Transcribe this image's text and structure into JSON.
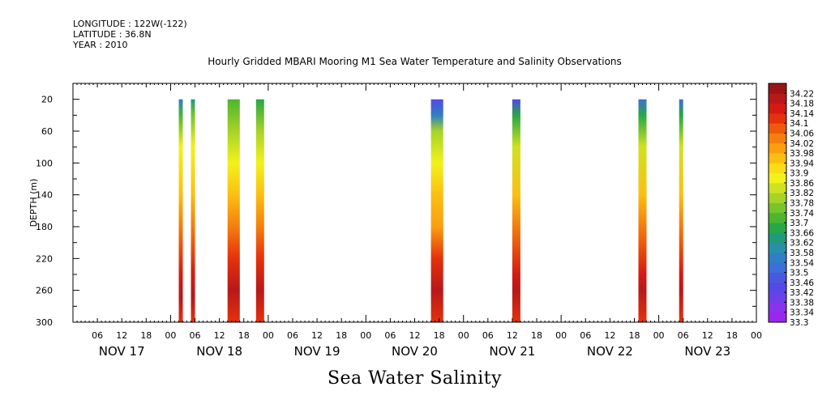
{
  "header": {
    "longitude": "LONGITUDE : 122W(-122)",
    "latitude": "LATITUDE : 36.8N",
    "year": "YEAR : 2010"
  },
  "chart_data": {
    "type": "heatmap",
    "title": "Hourly Gridded MBARI Mooring M1 Sea Water Temperature and Salinity Observations",
    "variable": "Sea Water Salinity",
    "ylabel": "DEPTH (m)",
    "y_reversed": true,
    "ylim": [
      0,
      300
    ],
    "yticks": [
      20,
      60,
      100,
      140,
      180,
      220,
      260,
      300
    ],
    "xlim_hours": [
      0,
      168
    ],
    "x_hour_ticks": [
      "06",
      "12",
      "18",
      "00",
      "06",
      "12",
      "18",
      "00",
      "06",
      "12",
      "18",
      "00",
      "06",
      "12",
      "18",
      "00",
      "06",
      "12",
      "18",
      "00",
      "06",
      "12",
      "18",
      "00",
      "06",
      "12",
      "18",
      "00"
    ],
    "x_day_labels": [
      "NOV 17",
      "NOV 18",
      "NOV 19",
      "NOV 20",
      "NOV 21",
      "NOV 22",
      "NOV 23"
    ],
    "colorbar_levels": [
      33.3,
      33.34,
      33.38,
      33.42,
      33.46,
      33.5,
      33.54,
      33.58,
      33.62,
      33.66,
      33.7,
      33.74,
      33.78,
      33.82,
      33.86,
      33.9,
      33.94,
      33.98,
      34.02,
      34.06,
      34.1,
      34.14,
      34.18,
      34.22
    ],
    "colorbar_colors": [
      "#9b27ee",
      "#8a33ec",
      "#6c3fea",
      "#5548e6",
      "#4a58e0",
      "#3d6fd8",
      "#2f7fc4",
      "#2790a8",
      "#209a78",
      "#27a745",
      "#4db52f",
      "#78c42b",
      "#a7d327",
      "#cfe21f",
      "#f2f21a",
      "#fbdd15",
      "#fbbf12",
      "#fa9f10",
      "#f47f0d",
      "#ee5a0b",
      "#e5310c",
      "#d41a12",
      "#b8181a",
      "#9a1416"
    ],
    "depth_profile": [
      {
        "depth": 20,
        "salinity": 33.68
      },
      {
        "depth": 40,
        "salinity": 33.74
      },
      {
        "depth": 60,
        "salinity": 33.8
      },
      {
        "depth": 80,
        "salinity": 33.85
      },
      {
        "depth": 100,
        "salinity": 33.88
      },
      {
        "depth": 120,
        "salinity": 33.91
      },
      {
        "depth": 140,
        "salinity": 33.95
      },
      {
        "depth": 160,
        "salinity": 33.99
      },
      {
        "depth": 180,
        "salinity": 34.02
      },
      {
        "depth": 200,
        "salinity": 34.07
      },
      {
        "depth": 220,
        "salinity": 34.12
      },
      {
        "depth": 240,
        "salinity": 34.17
      },
      {
        "depth": 260,
        "salinity": 34.2
      },
      {
        "depth": 280,
        "salinity": 34.15
      },
      {
        "depth": 300,
        "salinity": 34.12
      }
    ],
    "series": [
      {
        "start_hour": 26,
        "end_hour": 27,
        "surface_salinity": 33.55,
        "profile": [
          {
            "depth": 20,
            "salinity": 33.55
          },
          {
            "depth": 40,
            "salinity": 33.72
          },
          {
            "depth": 80,
            "salinity": 33.87
          },
          {
            "depth": 140,
            "salinity": 33.97
          },
          {
            "depth": 200,
            "salinity": 34.07
          },
          {
            "depth": 240,
            "salinity": 34.17
          },
          {
            "depth": 270,
            "salinity": 34.2
          },
          {
            "depth": 300,
            "salinity": 34.12
          }
        ]
      },
      {
        "start_hour": 29,
        "end_hour": 30,
        "surface_salinity": 33.64,
        "profile": [
          {
            "depth": 20,
            "salinity": 33.64
          },
          {
            "depth": 40,
            "salinity": 33.74
          },
          {
            "depth": 80,
            "salinity": 33.87
          },
          {
            "depth": 140,
            "salinity": 33.97
          },
          {
            "depth": 200,
            "salinity": 34.07
          },
          {
            "depth": 240,
            "salinity": 34.17
          },
          {
            "depth": 270,
            "salinity": 34.2
          },
          {
            "depth": 300,
            "salinity": 34.12
          }
        ]
      },
      {
        "start_hour": 38,
        "end_hour": 41,
        "surface_salinity": 33.72,
        "profile": [
          {
            "depth": 20,
            "salinity": 33.72
          },
          {
            "depth": 60,
            "salinity": 33.8
          },
          {
            "depth": 100,
            "salinity": 33.88
          },
          {
            "depth": 140,
            "salinity": 33.97
          },
          {
            "depth": 180,
            "salinity": 34.02
          },
          {
            "depth": 220,
            "salinity": 34.12
          },
          {
            "depth": 260,
            "salinity": 34.2
          },
          {
            "depth": 300,
            "salinity": 34.12
          }
        ]
      },
      {
        "start_hour": 45,
        "end_hour": 47,
        "surface_salinity": 33.68,
        "profile": [
          {
            "depth": 20,
            "salinity": 33.68
          },
          {
            "depth": 60,
            "salinity": 33.8
          },
          {
            "depth": 100,
            "salinity": 33.88
          },
          {
            "depth": 140,
            "salinity": 33.97
          },
          {
            "depth": 180,
            "salinity": 34.02
          },
          {
            "depth": 220,
            "salinity": 34.12
          },
          {
            "depth": 260,
            "salinity": 34.2
          },
          {
            "depth": 300,
            "salinity": 34.12
          }
        ]
      },
      {
        "start_hour": 88,
        "end_hour": 91,
        "surface_salinity": 33.45,
        "profile": [
          {
            "depth": 20,
            "salinity": 33.45
          },
          {
            "depth": 40,
            "salinity": 33.55
          },
          {
            "depth": 60,
            "salinity": 33.78
          },
          {
            "depth": 100,
            "salinity": 33.88
          },
          {
            "depth": 140,
            "salinity": 33.95
          },
          {
            "depth": 180,
            "salinity": 34.0
          },
          {
            "depth": 220,
            "salinity": 34.1
          },
          {
            "depth": 260,
            "salinity": 34.2
          },
          {
            "depth": 300,
            "salinity": 34.12
          }
        ]
      },
      {
        "start_hour": 108,
        "end_hour": 110,
        "surface_salinity": 33.45,
        "profile": [
          {
            "depth": 20,
            "salinity": 33.45
          },
          {
            "depth": 40,
            "salinity": 33.68
          },
          {
            "depth": 80,
            "salinity": 33.84
          },
          {
            "depth": 140,
            "salinity": 33.96
          },
          {
            "depth": 200,
            "salinity": 34.07
          },
          {
            "depth": 240,
            "salinity": 34.16
          },
          {
            "depth": 260,
            "salinity": 34.2
          },
          {
            "depth": 300,
            "salinity": 34.12
          }
        ]
      },
      {
        "start_hour": 139,
        "end_hour": 141,
        "surface_salinity": 33.5,
        "profile": [
          {
            "depth": 20,
            "salinity": 33.5
          },
          {
            "depth": 40,
            "salinity": 33.66
          },
          {
            "depth": 80,
            "salinity": 33.84
          },
          {
            "depth": 140,
            "salinity": 33.96
          },
          {
            "depth": 200,
            "salinity": 34.07
          },
          {
            "depth": 240,
            "salinity": 34.16
          },
          {
            "depth": 260,
            "salinity": 34.2
          },
          {
            "depth": 300,
            "salinity": 34.12
          }
        ]
      },
      {
        "start_hour": 149,
        "end_hour": 150,
        "surface_salinity": 33.52,
        "profile": [
          {
            "depth": 20,
            "salinity": 33.52
          },
          {
            "depth": 40,
            "salinity": 33.68
          },
          {
            "depth": 80,
            "salinity": 33.85
          },
          {
            "depth": 140,
            "salinity": 33.96
          },
          {
            "depth": 200,
            "salinity": 34.07
          },
          {
            "depth": 240,
            "salinity": 34.16
          },
          {
            "depth": 260,
            "salinity": 34.2
          },
          {
            "depth": 300,
            "salinity": 34.12
          }
        ]
      }
    ]
  }
}
